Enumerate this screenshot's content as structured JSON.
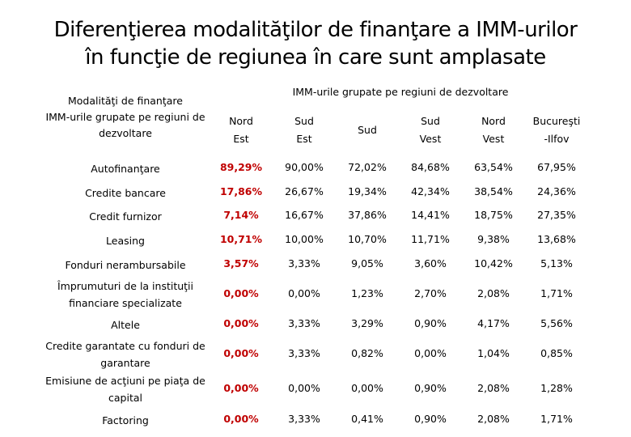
{
  "title_line1": "Diferenţierea modalităţilor de finanţare a IMM-urilor",
  "title_line2": "în funcţie de regiunea în care sunt amplasate",
  "group_header": "IMM-urile grupate pe regiuni de dezvoltare",
  "row_header_lines": [
    "Modalităţi de finanţare",
    "IMM-urile grupate pe regiuni de",
    "dezvoltare"
  ],
  "highlight_color": "#c00000",
  "chart_data": {
    "type": "table",
    "columns": [
      {
        "name": "Nord Est",
        "lines": [
          "Nord",
          "Est"
        ]
      },
      {
        "name": "Sud Est",
        "lines": [
          "Sud",
          "Est"
        ]
      },
      {
        "name": "Sud",
        "lines": [
          "Sud"
        ]
      },
      {
        "name": "Sud Vest",
        "lines": [
          "Sud",
          "Vest"
        ]
      },
      {
        "name": "Nord Vest",
        "lines": [
          "Nord",
          "Vest"
        ]
      },
      {
        "name": "Bucureşti -Ilfov",
        "lines": [
          "Bucureşti",
          "-Ilfov"
        ]
      }
    ],
    "rows": [
      {
        "label_lines": [
          "Autofinanţare"
        ],
        "values": [
          "89,29%",
          "90,00%",
          "72,02%",
          "84,68%",
          "63,54%",
          "67,95%"
        ]
      },
      {
        "label_lines": [
          "Credite bancare"
        ],
        "values": [
          "17,86%",
          "26,67%",
          "19,34%",
          "42,34%",
          "38,54%",
          "24,36%"
        ]
      },
      {
        "label_lines": [
          "Credit furnizor"
        ],
        "values": [
          "7,14%",
          "16,67%",
          "37,86%",
          "14,41%",
          "18,75%",
          "27,35%"
        ]
      },
      {
        "label_lines": [
          "Leasing"
        ],
        "values": [
          "10,71%",
          "10,00%",
          "10,70%",
          "11,71%",
          "9,38%",
          "13,68%"
        ]
      },
      {
        "label_lines": [
          "Fonduri nerambursabile"
        ],
        "values": [
          "3,57%",
          "3,33%",
          "9,05%",
          "3,60%",
          "10,42%",
          "5,13%"
        ]
      },
      {
        "label_lines": [
          "Împrumuturi de la instituţii",
          "financiare specializate"
        ],
        "values": [
          "0,00%",
          "0,00%",
          "1,23%",
          "2,70%",
          "2,08%",
          "1,71%"
        ]
      },
      {
        "label_lines": [
          "Altele"
        ],
        "values": [
          "0,00%",
          "3,33%",
          "3,29%",
          "0,90%",
          "4,17%",
          "5,56%"
        ]
      },
      {
        "label_lines": [
          "Credite garantate cu fonduri de",
          "garantare"
        ],
        "values": [
          "0,00%",
          "3,33%",
          "0,82%",
          "0,00%",
          "1,04%",
          "0,85%"
        ]
      },
      {
        "label_lines": [
          "Emisiune de acţiuni pe piaţa de",
          "capital"
        ],
        "values": [
          "0,00%",
          "0,00%",
          "0,00%",
          "0,90%",
          "2,08%",
          "1,28%"
        ]
      },
      {
        "label_lines": [
          "Factoring"
        ],
        "values": [
          "0,00%",
          "3,33%",
          "0,41%",
          "0,90%",
          "2,08%",
          "1,71%"
        ]
      }
    ],
    "highlighted_column": "Nord Est"
  }
}
